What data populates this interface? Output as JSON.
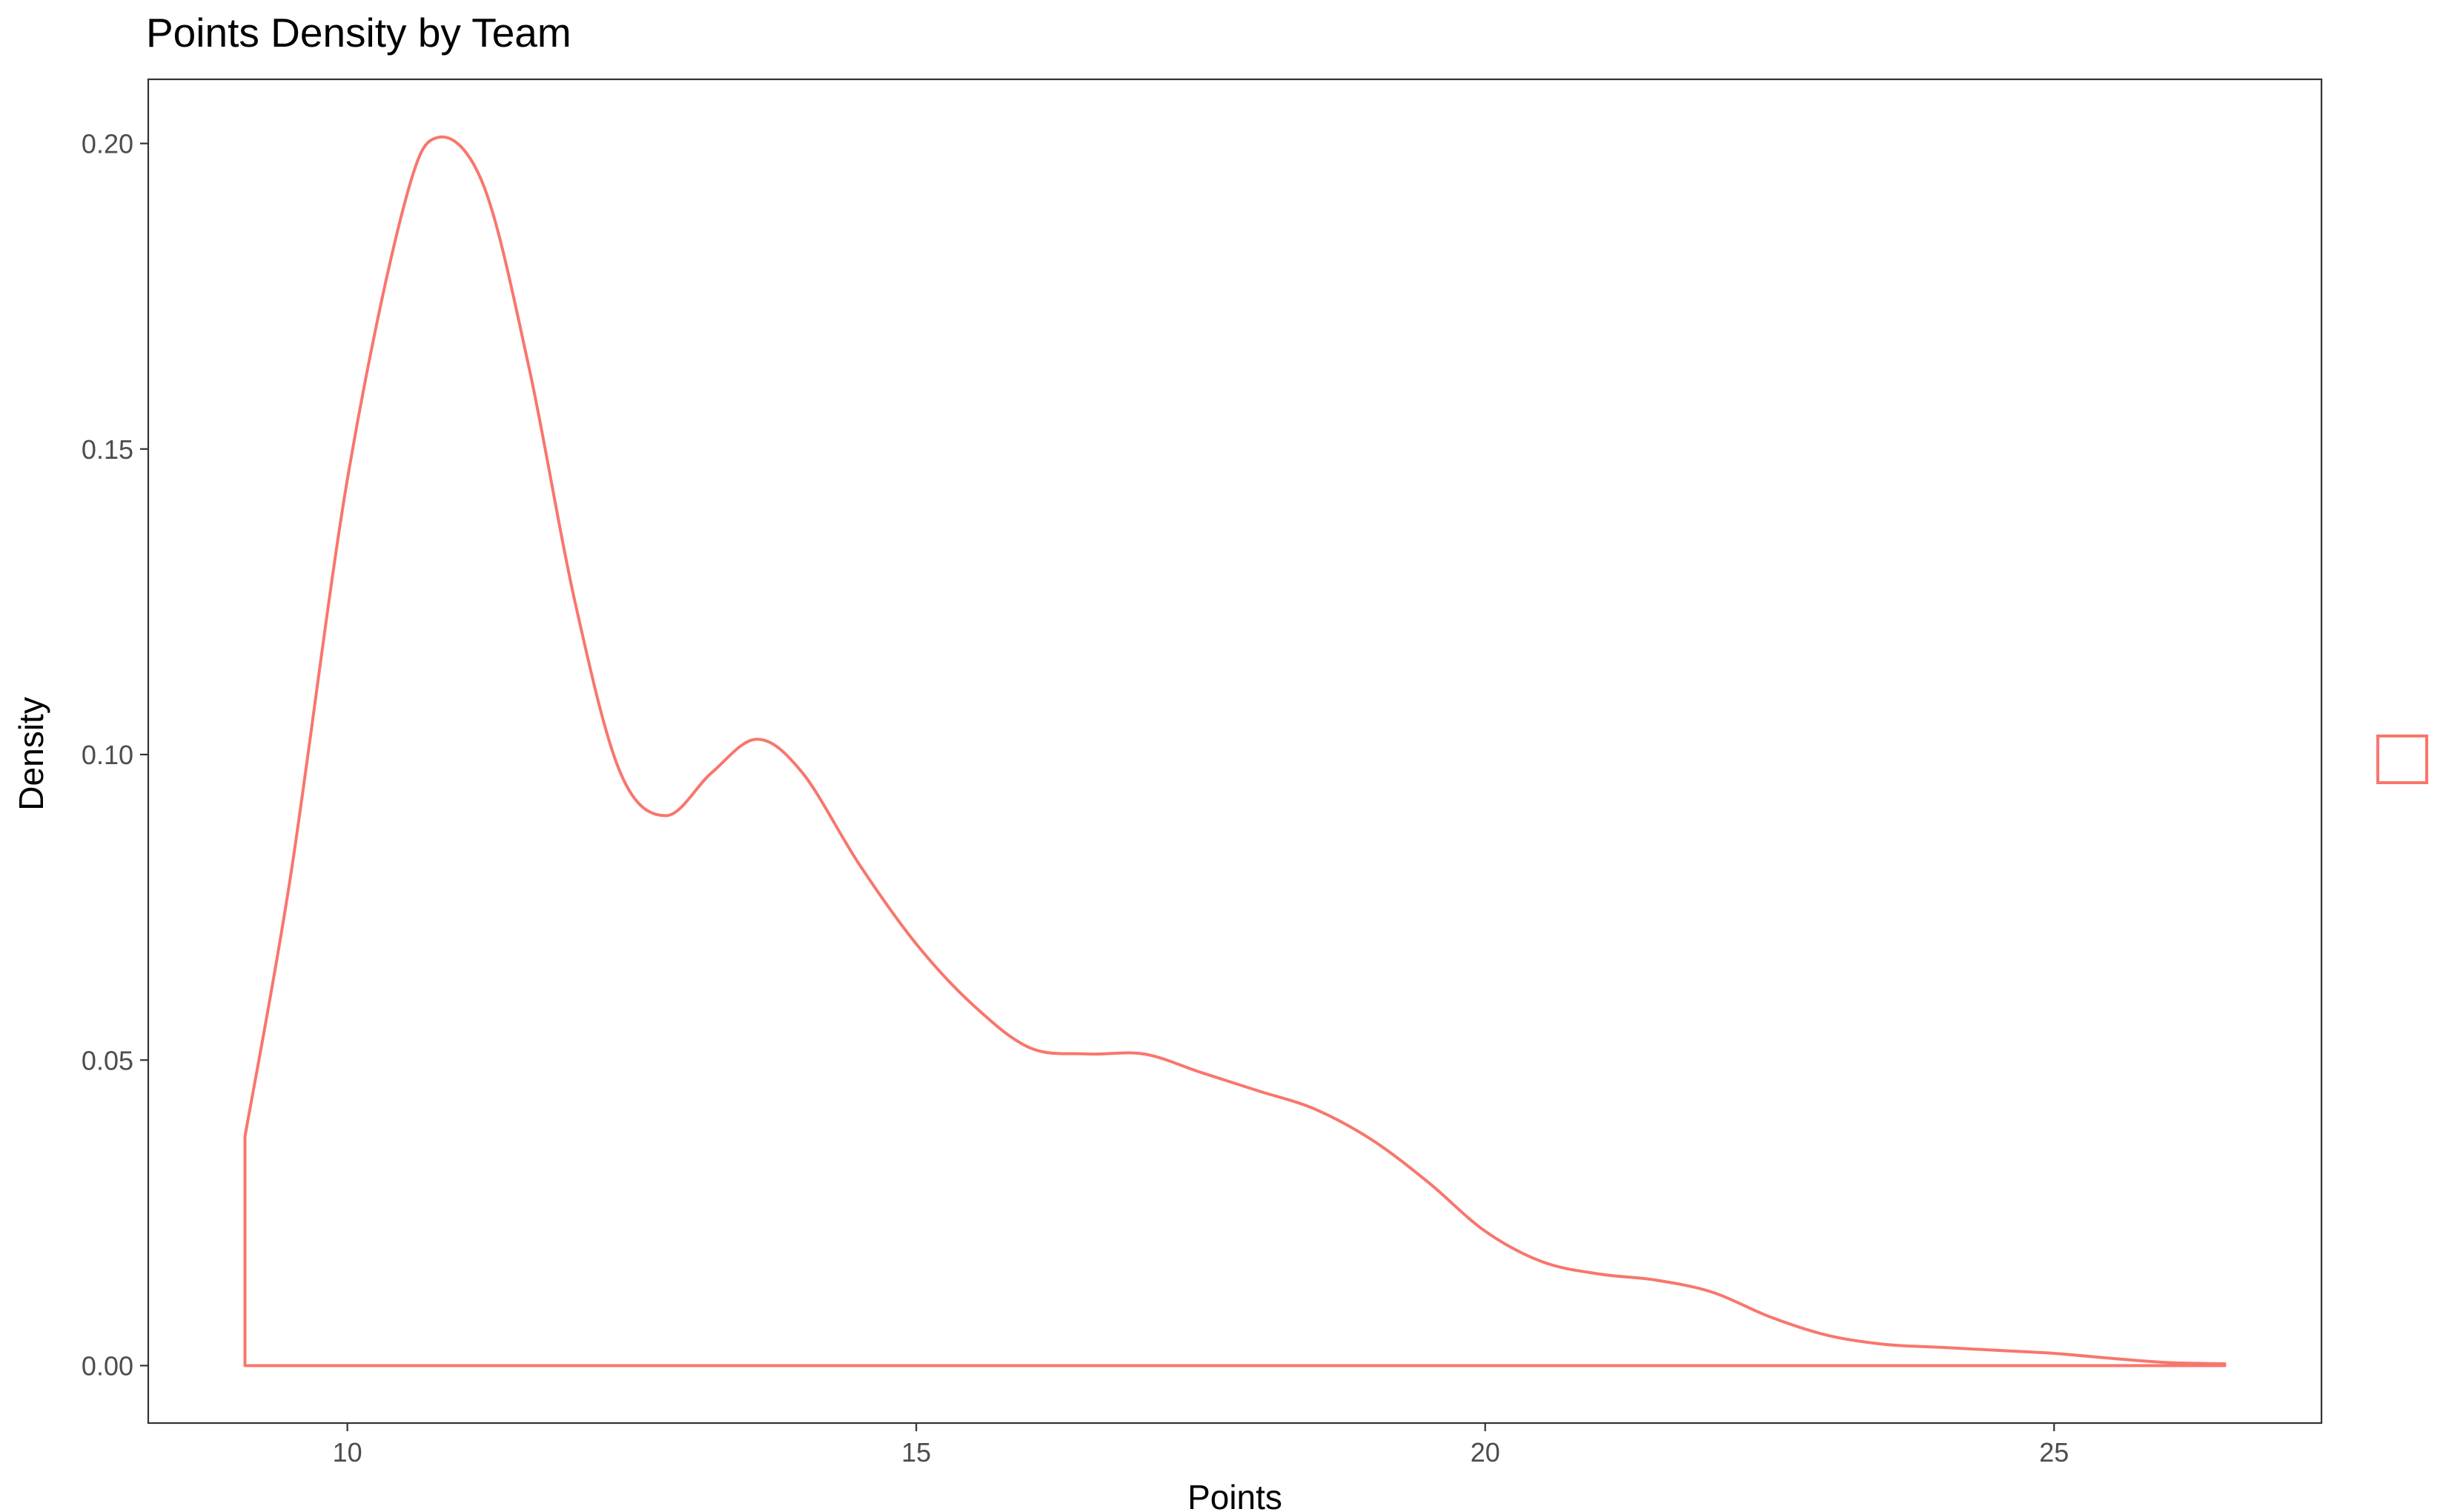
{
  "chart_data": {
    "type": "area",
    "title": "Points Density by Team",
    "xlabel": "Points",
    "ylabel": "Density",
    "xlim": [
      8.25,
      27.35
    ],
    "ylim": [
      -0.0094,
      0.2105
    ],
    "x_ticks": [
      10,
      15,
      20,
      25
    ],
    "x_tick_labels": [
      "10",
      "15",
      "20",
      "25"
    ],
    "y_ticks": [
      0,
      0.05,
      0.1,
      0.15,
      0.2
    ],
    "y_tick_labels": [
      "0.00",
      "0.05",
      "0.10",
      "0.15",
      "0.20"
    ],
    "grid": false,
    "legend": {
      "position": "right",
      "entries": [
        {
          "name": "",
          "color": "#F8766D"
        }
      ]
    },
    "series": [
      {
        "name": "",
        "color": "#F8766D",
        "fill": "none",
        "x": [
          9.1,
          9.5,
          10.0,
          10.5,
          10.8,
          11.2,
          11.6,
          12.0,
          12.4,
          12.8,
          13.2,
          13.6,
          14.0,
          14.5,
          15.0,
          15.5,
          16.0,
          16.5,
          17.0,
          17.5,
          18.0,
          18.5,
          19.0,
          19.5,
          20.0,
          20.5,
          21.0,
          21.5,
          22.0,
          22.5,
          23.0,
          23.5,
          24.0,
          24.5,
          25.0,
          25.5,
          26.0,
          26.5
        ],
        "y": [
          0.0375,
          0.08,
          0.145,
          0.19,
          0.201,
          0.193,
          0.163,
          0.125,
          0.097,
          0.09,
          0.097,
          0.1025,
          0.097,
          0.082,
          0.069,
          0.059,
          0.052,
          0.051,
          0.051,
          0.048,
          0.045,
          0.042,
          0.037,
          0.03,
          0.022,
          0.017,
          0.015,
          0.014,
          0.012,
          0.008,
          0.005,
          0.0035,
          0.003,
          0.0025,
          0.002,
          0.0012,
          0.0005,
          0.0003
        ]
      }
    ]
  }
}
